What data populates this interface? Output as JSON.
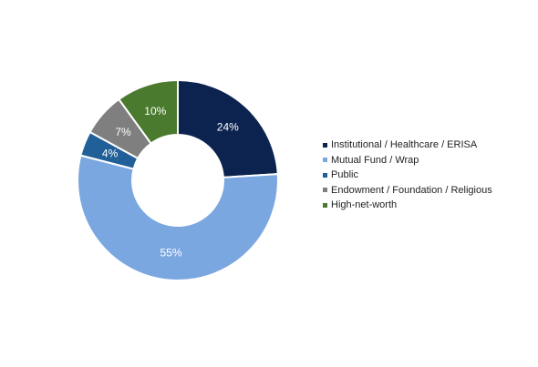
{
  "chart_data": {
    "type": "pie",
    "donut": true,
    "categories": [
      "Institutional / Healthcare / ERISA",
      "Mutual Fund / Wrap",
      "Public",
      "Endowment / Foundation / Religious",
      "High-net-worth"
    ],
    "values": [
      24,
      55,
      4,
      7,
      10
    ],
    "data_labels": [
      "24%",
      "55%",
      "4%",
      "7%",
      "10%"
    ],
    "colors": [
      "#0c2350",
      "#7ba7e0",
      "#205f98",
      "#7f7f7f",
      "#4a7a2e"
    ],
    "start_angle_deg": 0,
    "direction": "clockwise",
    "legend_position": "right"
  }
}
